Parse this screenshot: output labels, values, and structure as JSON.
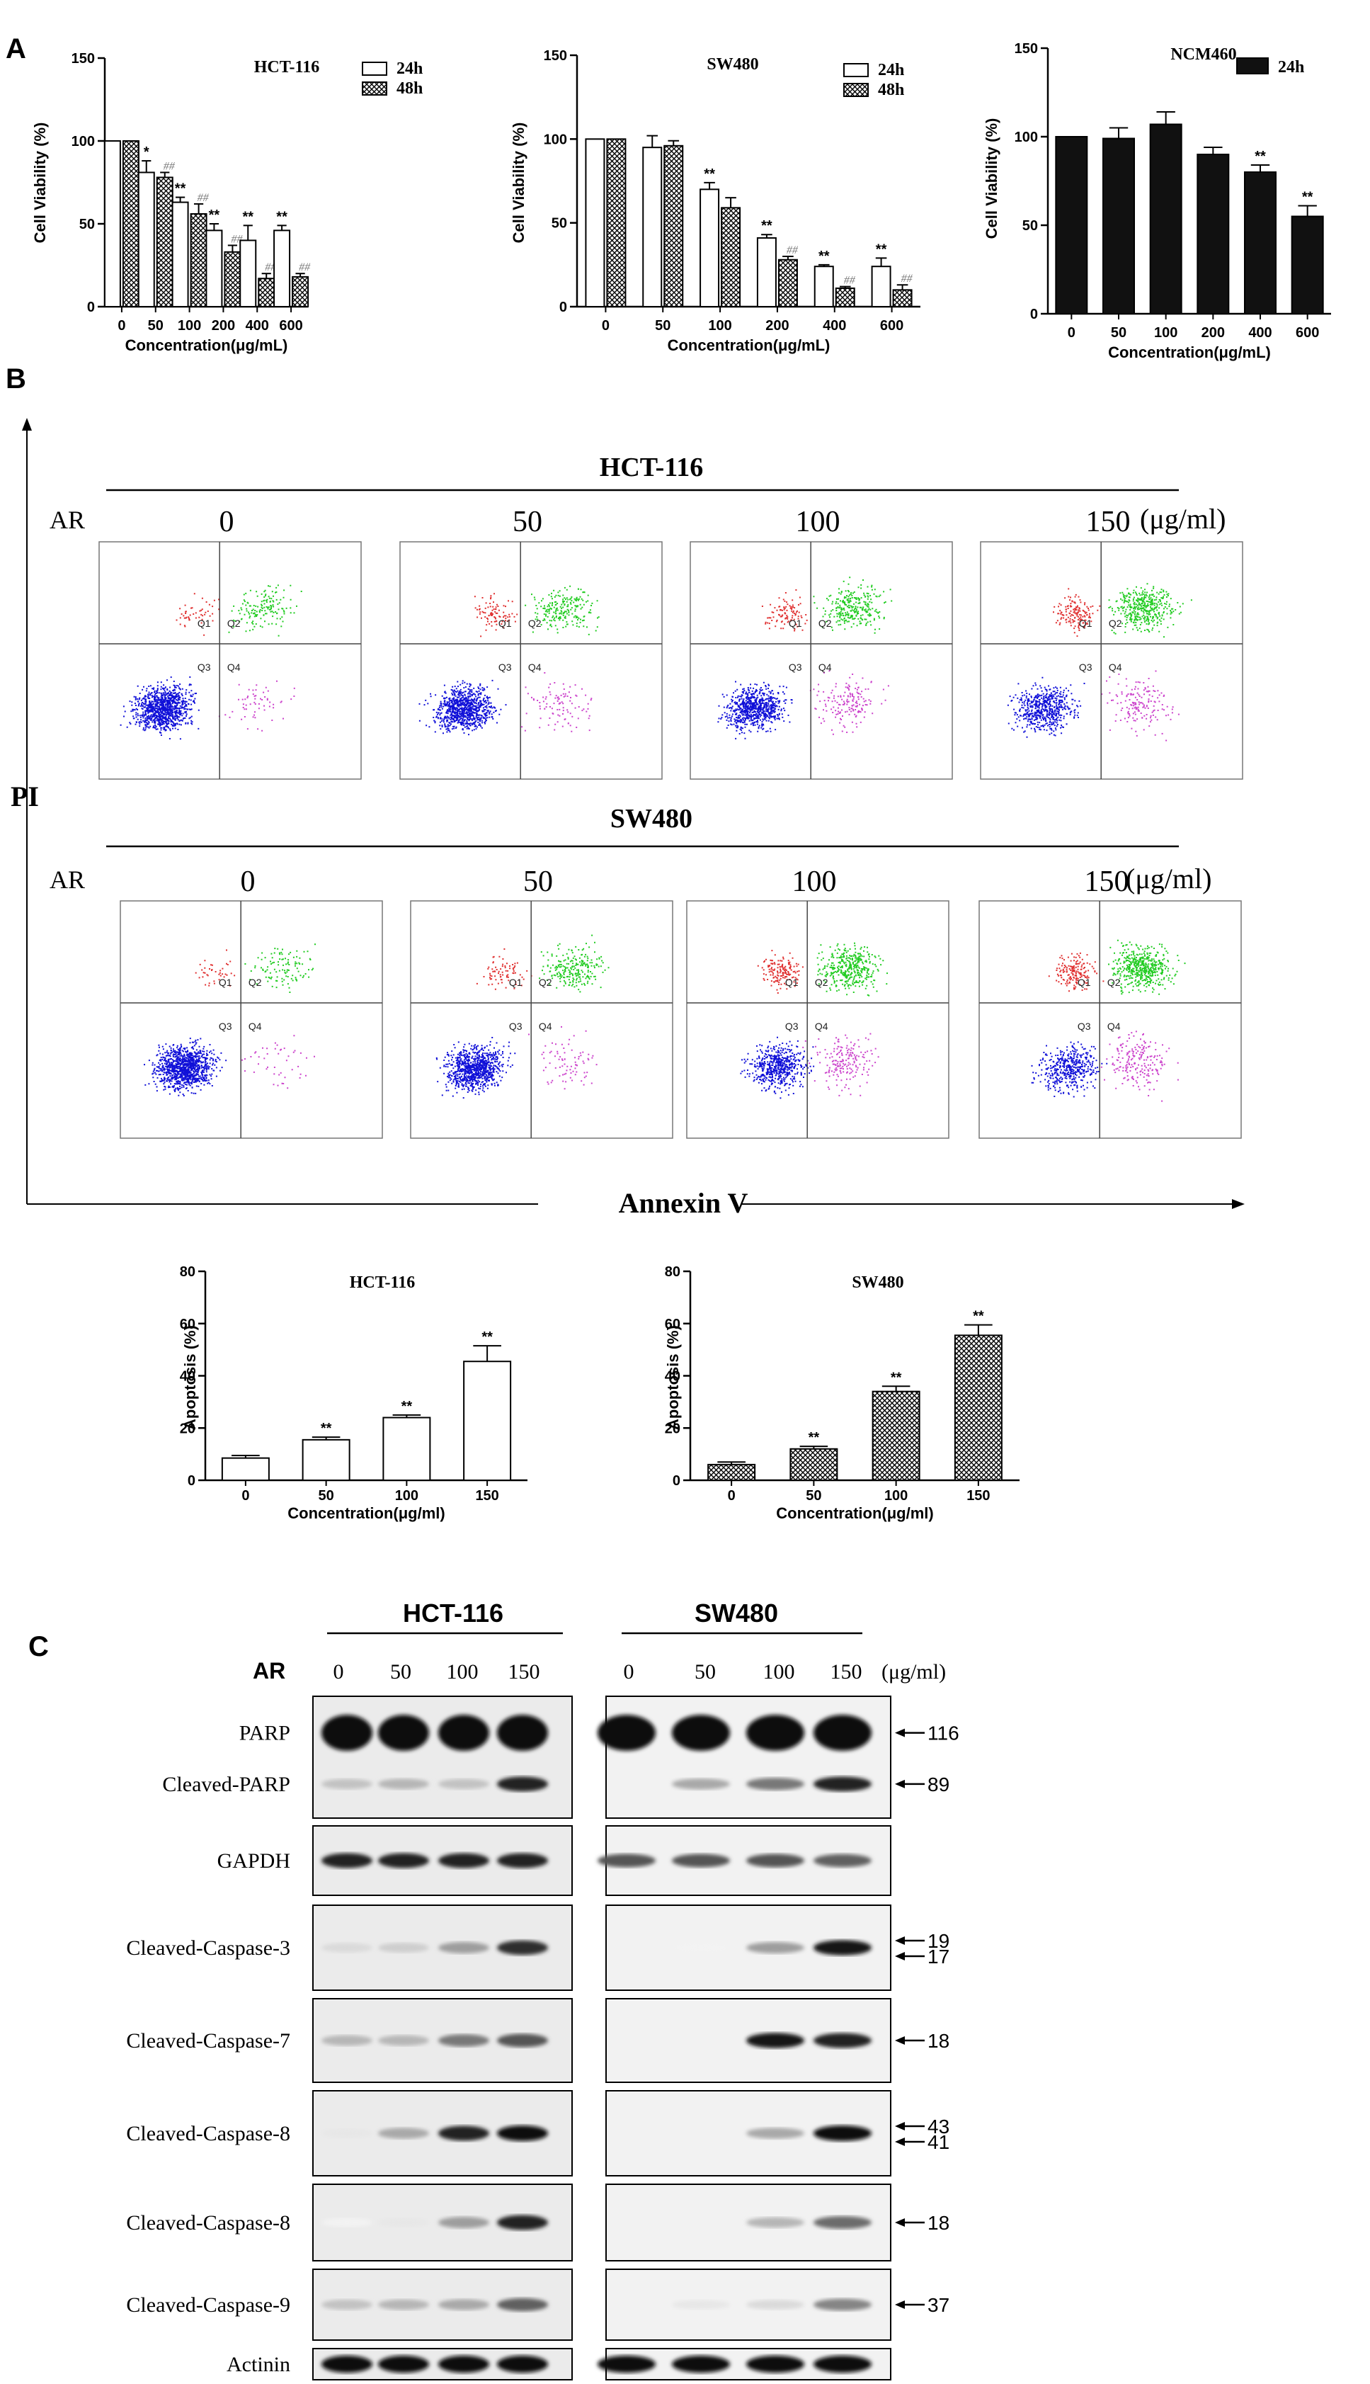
{
  "panel_labels": {
    "a": "A",
    "b": "B",
    "c": "C"
  },
  "chart_data": [
    {
      "id": "hct116-viability",
      "type": "bar",
      "title": "HCT-116",
      "xlabel": "Concentration(μg/mL)",
      "ylabel": "Cell Viability (%)",
      "ylim": [
        0,
        150
      ],
      "yticks": [
        "0",
        "50",
        "100",
        "150"
      ],
      "categories": [
        "0",
        "50",
        "100",
        "200",
        "400",
        "600"
      ],
      "series": [
        {
          "name": "24h",
          "style": "white",
          "values": [
            100,
            81,
            63,
            46,
            40,
            46
          ],
          "errors": [
            0,
            7,
            3,
            4,
            9,
            3
          ],
          "marks": [
            "",
            "*",
            "**",
            "**",
            "**",
            "**"
          ]
        },
        {
          "name": "48h",
          "style": "hatch",
          "values": [
            100,
            78,
            56,
            33,
            17,
            18
          ],
          "errors": [
            0,
            3,
            6,
            4,
            3,
            2
          ],
          "marks": [
            "",
            "##",
            "##",
            "##",
            "##",
            "##"
          ]
        }
      ],
      "legend": "top-right"
    },
    {
      "id": "sw480-viability",
      "type": "bar",
      "title": "SW480",
      "xlabel": "Concentration(μg/mL)",
      "ylabel": "Cell Viability (%)",
      "ylim": [
        0,
        150
      ],
      "yticks": [
        "0",
        "50",
        "100",
        "150"
      ],
      "categories": [
        "0",
        "50",
        "100",
        "200",
        "400",
        "600"
      ],
      "series": [
        {
          "name": "24h",
          "style": "white",
          "values": [
            100,
            95,
            70,
            41,
            24,
            24
          ],
          "errors": [
            0,
            7,
            4,
            2,
            1,
            5
          ],
          "marks": [
            "",
            "",
            "**",
            "**",
            "**",
            "**"
          ]
        },
        {
          "name": "48h",
          "style": "hatch",
          "values": [
            100,
            96,
            59,
            28,
            11,
            10
          ],
          "errors": [
            0,
            3,
            6,
            2,
            1,
            3
          ],
          "marks": [
            "",
            "",
            "",
            "##",
            "##",
            "##"
          ]
        }
      ],
      "legend": "top-right"
    },
    {
      "id": "ncm460-viability",
      "type": "bar",
      "title": "NCM460",
      "xlabel": "Concentration(μg/mL)",
      "ylabel": "Cell Viability (%)",
      "ylim": [
        0,
        150
      ],
      "yticks": [
        "0",
        "50",
        "100",
        "150"
      ],
      "categories": [
        "0",
        "50",
        "100",
        "200",
        "400",
        "600"
      ],
      "series": [
        {
          "name": "24h",
          "style": "black",
          "values": [
            100,
            99,
            107,
            90,
            80,
            55
          ],
          "errors": [
            0,
            6,
            7,
            4,
            4,
            6
          ],
          "marks": [
            "",
            "",
            "",
            "",
            "**",
            "**"
          ]
        }
      ],
      "legend": "top-right"
    },
    {
      "id": "hct116-apoptosis",
      "type": "bar",
      "title": "HCT-116",
      "xlabel": "Concentration(μg/ml)",
      "ylabel": "Apoptosis (%)",
      "ylim": [
        0,
        80
      ],
      "yticks": [
        "0",
        "20",
        "40",
        "60",
        "80"
      ],
      "categories": [
        "0",
        "50",
        "100",
        "150"
      ],
      "series": [
        {
          "name": "Apoptosis",
          "style": "white",
          "values": [
            8.5,
            15.5,
            24,
            45.5
          ],
          "errors": [
            1,
            1,
            1,
            6
          ],
          "marks": [
            "",
            "**",
            "**",
            "**"
          ]
        }
      ]
    },
    {
      "id": "sw480-apoptosis",
      "type": "bar",
      "title": "SW480",
      "xlabel": "Concentration(μg/ml)",
      "ylabel": "Apoptosis (%)",
      "ylim": [
        0,
        80
      ],
      "yticks": [
        "0",
        "20",
        "40",
        "60",
        "80"
      ],
      "categories": [
        "0",
        "50",
        "100",
        "150"
      ],
      "series": [
        {
          "name": "Apoptosis",
          "style": "hatch",
          "values": [
            6,
            12,
            34,
            55.5
          ],
          "errors": [
            1,
            1,
            2,
            4
          ],
          "marks": [
            "",
            "**",
            "**",
            "**"
          ]
        }
      ]
    }
  ],
  "flow": {
    "y_axis_label": "PI",
    "x_axis_label": "Annexin V",
    "treatment_label": "AR",
    "unit": "(μg/ml)",
    "doses": [
      "0",
      "50",
      "100",
      "150"
    ],
    "quadrant_labels": [
      "Q1",
      "Q2",
      "Q3",
      "Q4"
    ],
    "rows": [
      {
        "cell_line": "HCT-116",
        "apoptosis_fraction": [
          0.18,
          0.28,
          0.42,
          0.55
        ]
      },
      {
        "cell_line": "SW480",
        "apoptosis_fraction": [
          0.15,
          0.3,
          0.55,
          0.65
        ]
      }
    ],
    "colors": {
      "live": "#1010d8",
      "early": "#cc44cc",
      "late": "#22cc22",
      "necrotic": "#e03030"
    }
  },
  "western": {
    "treatment_label": "AR",
    "unit": "(μg/ml)",
    "cell_lines": [
      "HCT-116",
      "SW480"
    ],
    "doses": [
      "0",
      "50",
      "100",
      "150"
    ],
    "rows": [
      {
        "labels": [
          "PARP",
          "Cleaved-PARP"
        ],
        "mw": [
          "116",
          "89"
        ]
      },
      {
        "labels": [
          "GAPDH"
        ],
        "mw": []
      },
      {
        "labels": [
          "Cleaved-Caspase-3"
        ],
        "mw": [
          "19",
          "17"
        ]
      },
      {
        "labels": [
          "Cleaved-Caspase-7"
        ],
        "mw": [
          "18"
        ]
      },
      {
        "labels": [
          "Cleaved-Caspase-8"
        ],
        "mw": [
          "43",
          "41"
        ]
      },
      {
        "labels": [
          "Cleaved-Caspase-8"
        ],
        "mw": [
          "18"
        ]
      },
      {
        "labels": [
          "Cleaved-Caspase-9"
        ],
        "mw": [
          "37"
        ]
      },
      {
        "labels": [
          "Actinin"
        ],
        "mw": []
      }
    ]
  }
}
